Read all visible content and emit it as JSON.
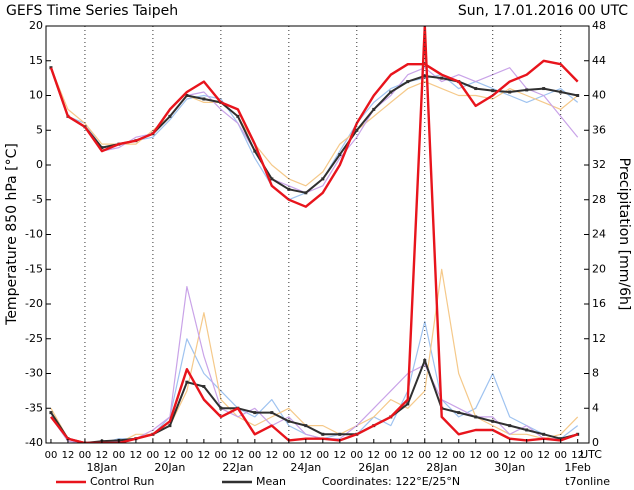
{
  "chart_data": {
    "type": "line",
    "title": "GEFS Time Series Taipeh",
    "subtitle": "Sun, 17.01.2016 00 UTC",
    "ylabel": "Temperature 850 hPa [°C]",
    "y2label": "Precipitation [mm/6h]",
    "coordinates": "Coordinates: 122°E/25°N",
    "source": "t7online",
    "time_zone": "UTC",
    "x": [
      0,
      12,
      24,
      36,
      48,
      60,
      72,
      84,
      96,
      108,
      120,
      132,
      144,
      156,
      168,
      180,
      192,
      204,
      216,
      228,
      240,
      252,
      264,
      276,
      288,
      300,
      312,
      324,
      336,
      348,
      360,
      372
    ],
    "xlim": [
      -3.5,
      380
    ],
    "xticks": [
      {
        "value": 0,
        "label": "00"
      },
      {
        "value": 12,
        "label": "12"
      },
      {
        "value": 24,
        "label": "00"
      },
      {
        "value": 36,
        "label": "12"
      },
      {
        "value": 48,
        "label": "00"
      },
      {
        "value": 60,
        "label": "12"
      },
      {
        "value": 72,
        "label": "00"
      },
      {
        "value": 84,
        "label": "12"
      },
      {
        "value": 96,
        "label": "00"
      },
      {
        "value": 108,
        "label": "12"
      },
      {
        "value": 120,
        "label": "00"
      },
      {
        "value": 132,
        "label": "12"
      },
      {
        "value": 144,
        "label": "00"
      },
      {
        "value": 156,
        "label": "12"
      },
      {
        "value": 168,
        "label": "00"
      },
      {
        "value": 180,
        "label": "12"
      },
      {
        "value": 192,
        "label": "00"
      },
      {
        "value": 204,
        "label": "12"
      },
      {
        "value": 216,
        "label": "00"
      },
      {
        "value": 228,
        "label": "12"
      },
      {
        "value": 240,
        "label": "00"
      },
      {
        "value": 252,
        "label": "12"
      },
      {
        "value": 264,
        "label": "00"
      },
      {
        "value": 276,
        "label": "12"
      },
      {
        "value": 288,
        "label": "00"
      },
      {
        "value": 300,
        "label": "12"
      },
      {
        "value": 312,
        "label": "00"
      },
      {
        "value": 324,
        "label": "12"
      },
      {
        "value": 336,
        "label": "00"
      },
      {
        "value": 348,
        "label": "12"
      },
      {
        "value": 360,
        "label": "00"
      },
      {
        "value": 372,
        "label": "12"
      }
    ],
    "date_labels": [
      {
        "value": 36,
        "label": "18Jan"
      },
      {
        "value": 84,
        "label": "20Jan"
      },
      {
        "value": 132,
        "label": "22Jan"
      },
      {
        "value": 180,
        "label": "24Jan"
      },
      {
        "value": 228,
        "label": "26Jan"
      },
      {
        "value": 276,
        "label": "28Jan"
      },
      {
        "value": 324,
        "label": "30Jan"
      },
      {
        "value": 372,
        "label": "1Feb"
      }
    ],
    "xgrid": [
      24,
      72,
      120,
      168,
      216,
      264,
      312,
      360
    ],
    "ylim": [
      -40,
      20
    ],
    "yticks": [
      -40,
      -35,
      -30,
      -25,
      -20,
      -15,
      -10,
      -5,
      0,
      5,
      10,
      15,
      20
    ],
    "y2lim": [
      0,
      48
    ],
    "y2ticks": [
      0,
      4,
      8,
      12,
      16,
      20,
      24,
      28,
      32,
      36,
      40,
      44,
      48
    ],
    "series": [
      {
        "color": "#9fc3f0",
        "values": [
          14,
          7,
          6,
          2.5,
          3,
          3.5,
          4,
          6.5,
          9.5,
          10,
          9.5,
          6,
          1,
          -3,
          -5,
          -4,
          -2,
          2,
          6,
          9,
          11,
          12,
          12.5,
          13,
          11,
          12,
          11,
          10,
          9,
          10,
          11,
          9
        ],
        "precip": [
          3,
          0.5,
          0,
          0,
          0.5,
          0.5,
          1,
          3,
          12,
          8,
          6,
          4,
          3,
          5,
          2,
          1,
          0.5,
          1,
          1,
          3,
          2,
          6,
          14,
          5,
          3,
          4,
          8,
          3,
          2,
          1,
          0.5,
          2
        ]
      },
      {
        "color": "#f5c98a",
        "values": [
          14,
          8,
          6,
          3,
          3,
          3,
          5,
          7,
          10,
          9,
          9,
          7,
          3,
          0,
          -2,
          -3,
          -1,
          3,
          5,
          7,
          9,
          11,
          12,
          11,
          10,
          10,
          9.5,
          11,
          10,
          9,
          8,
          10
        ],
        "precip": [
          4,
          0.5,
          0,
          0,
          0,
          1,
          1,
          2,
          6,
          15,
          5,
          3,
          2,
          3,
          4,
          2,
          2,
          1,
          2,
          3,
          5,
          4,
          6,
          20,
          8,
          3,
          2,
          1,
          1,
          0.5,
          1,
          3
        ]
      },
      {
        "color": "#c9a3e8",
        "values": [
          14,
          7,
          5.5,
          2,
          2.5,
          4,
          4.5,
          7,
          10,
          10.5,
          8,
          6,
          2,
          -2,
          -3,
          -4,
          -3,
          1,
          4,
          8,
          10,
          13,
          14,
          12,
          13,
          12,
          13,
          14,
          11,
          10,
          7,
          4
        ],
        "precip": [
          3,
          0.2,
          0,
          0,
          0.2,
          0.5,
          1.5,
          3,
          18,
          10,
          4,
          3,
          4,
          2,
          3,
          1,
          0.5,
          0.5,
          2,
          4,
          6,
          8,
          9,
          5,
          4,
          3,
          3,
          1,
          2,
          0.5,
          0.5,
          1
        ]
      },
      {
        "name": "Mean",
        "color": "#303030",
        "markers": true,
        "values": [
          14,
          7,
          5.5,
          2.5,
          3,
          3.5,
          4.5,
          7,
          10,
          9.5,
          9,
          7,
          2,
          -2,
          -3.5,
          -4,
          -2,
          1.5,
          5,
          8,
          10.5,
          12,
          12.8,
          12.5,
          12,
          11,
          10.7,
          10.5,
          10.8,
          11,
          10.5,
          10
        ],
        "precip": [
          3.5,
          0.5,
          0,
          0.2,
          0.3,
          0.5,
          1,
          2,
          7,
          6.5,
          4,
          4,
          3.5,
          3.5,
          2.5,
          2,
          1,
          1,
          1,
          2,
          3,
          4.5,
          9.5,
          4,
          3.5,
          3,
          2.5,
          2,
          1.5,
          1,
          0.5,
          1
        ]
      },
      {
        "name": "Control Run",
        "color": "#e8141c",
        "values": [
          14,
          7,
          5.5,
          2,
          3,
          3.5,
          4.5,
          8,
          10.5,
          12,
          9,
          8,
          3,
          -3,
          -5,
          -6,
          -4,
          0,
          6,
          10,
          13,
          14.5,
          14.5,
          13,
          12,
          8.5,
          10,
          12,
          13,
          15,
          14.5,
          12
        ],
        "precip": [
          3,
          0.5,
          0,
          0,
          0,
          0.5,
          1,
          2.5,
          8.5,
          5,
          3,
          4,
          1,
          2,
          0.3,
          0.5,
          0.5,
          0.3,
          1,
          2,
          3,
          5,
          48,
          3,
          1,
          1.5,
          1.5,
          0.5,
          0.3,
          0.5,
          0.3,
          1
        ]
      }
    ]
  }
}
